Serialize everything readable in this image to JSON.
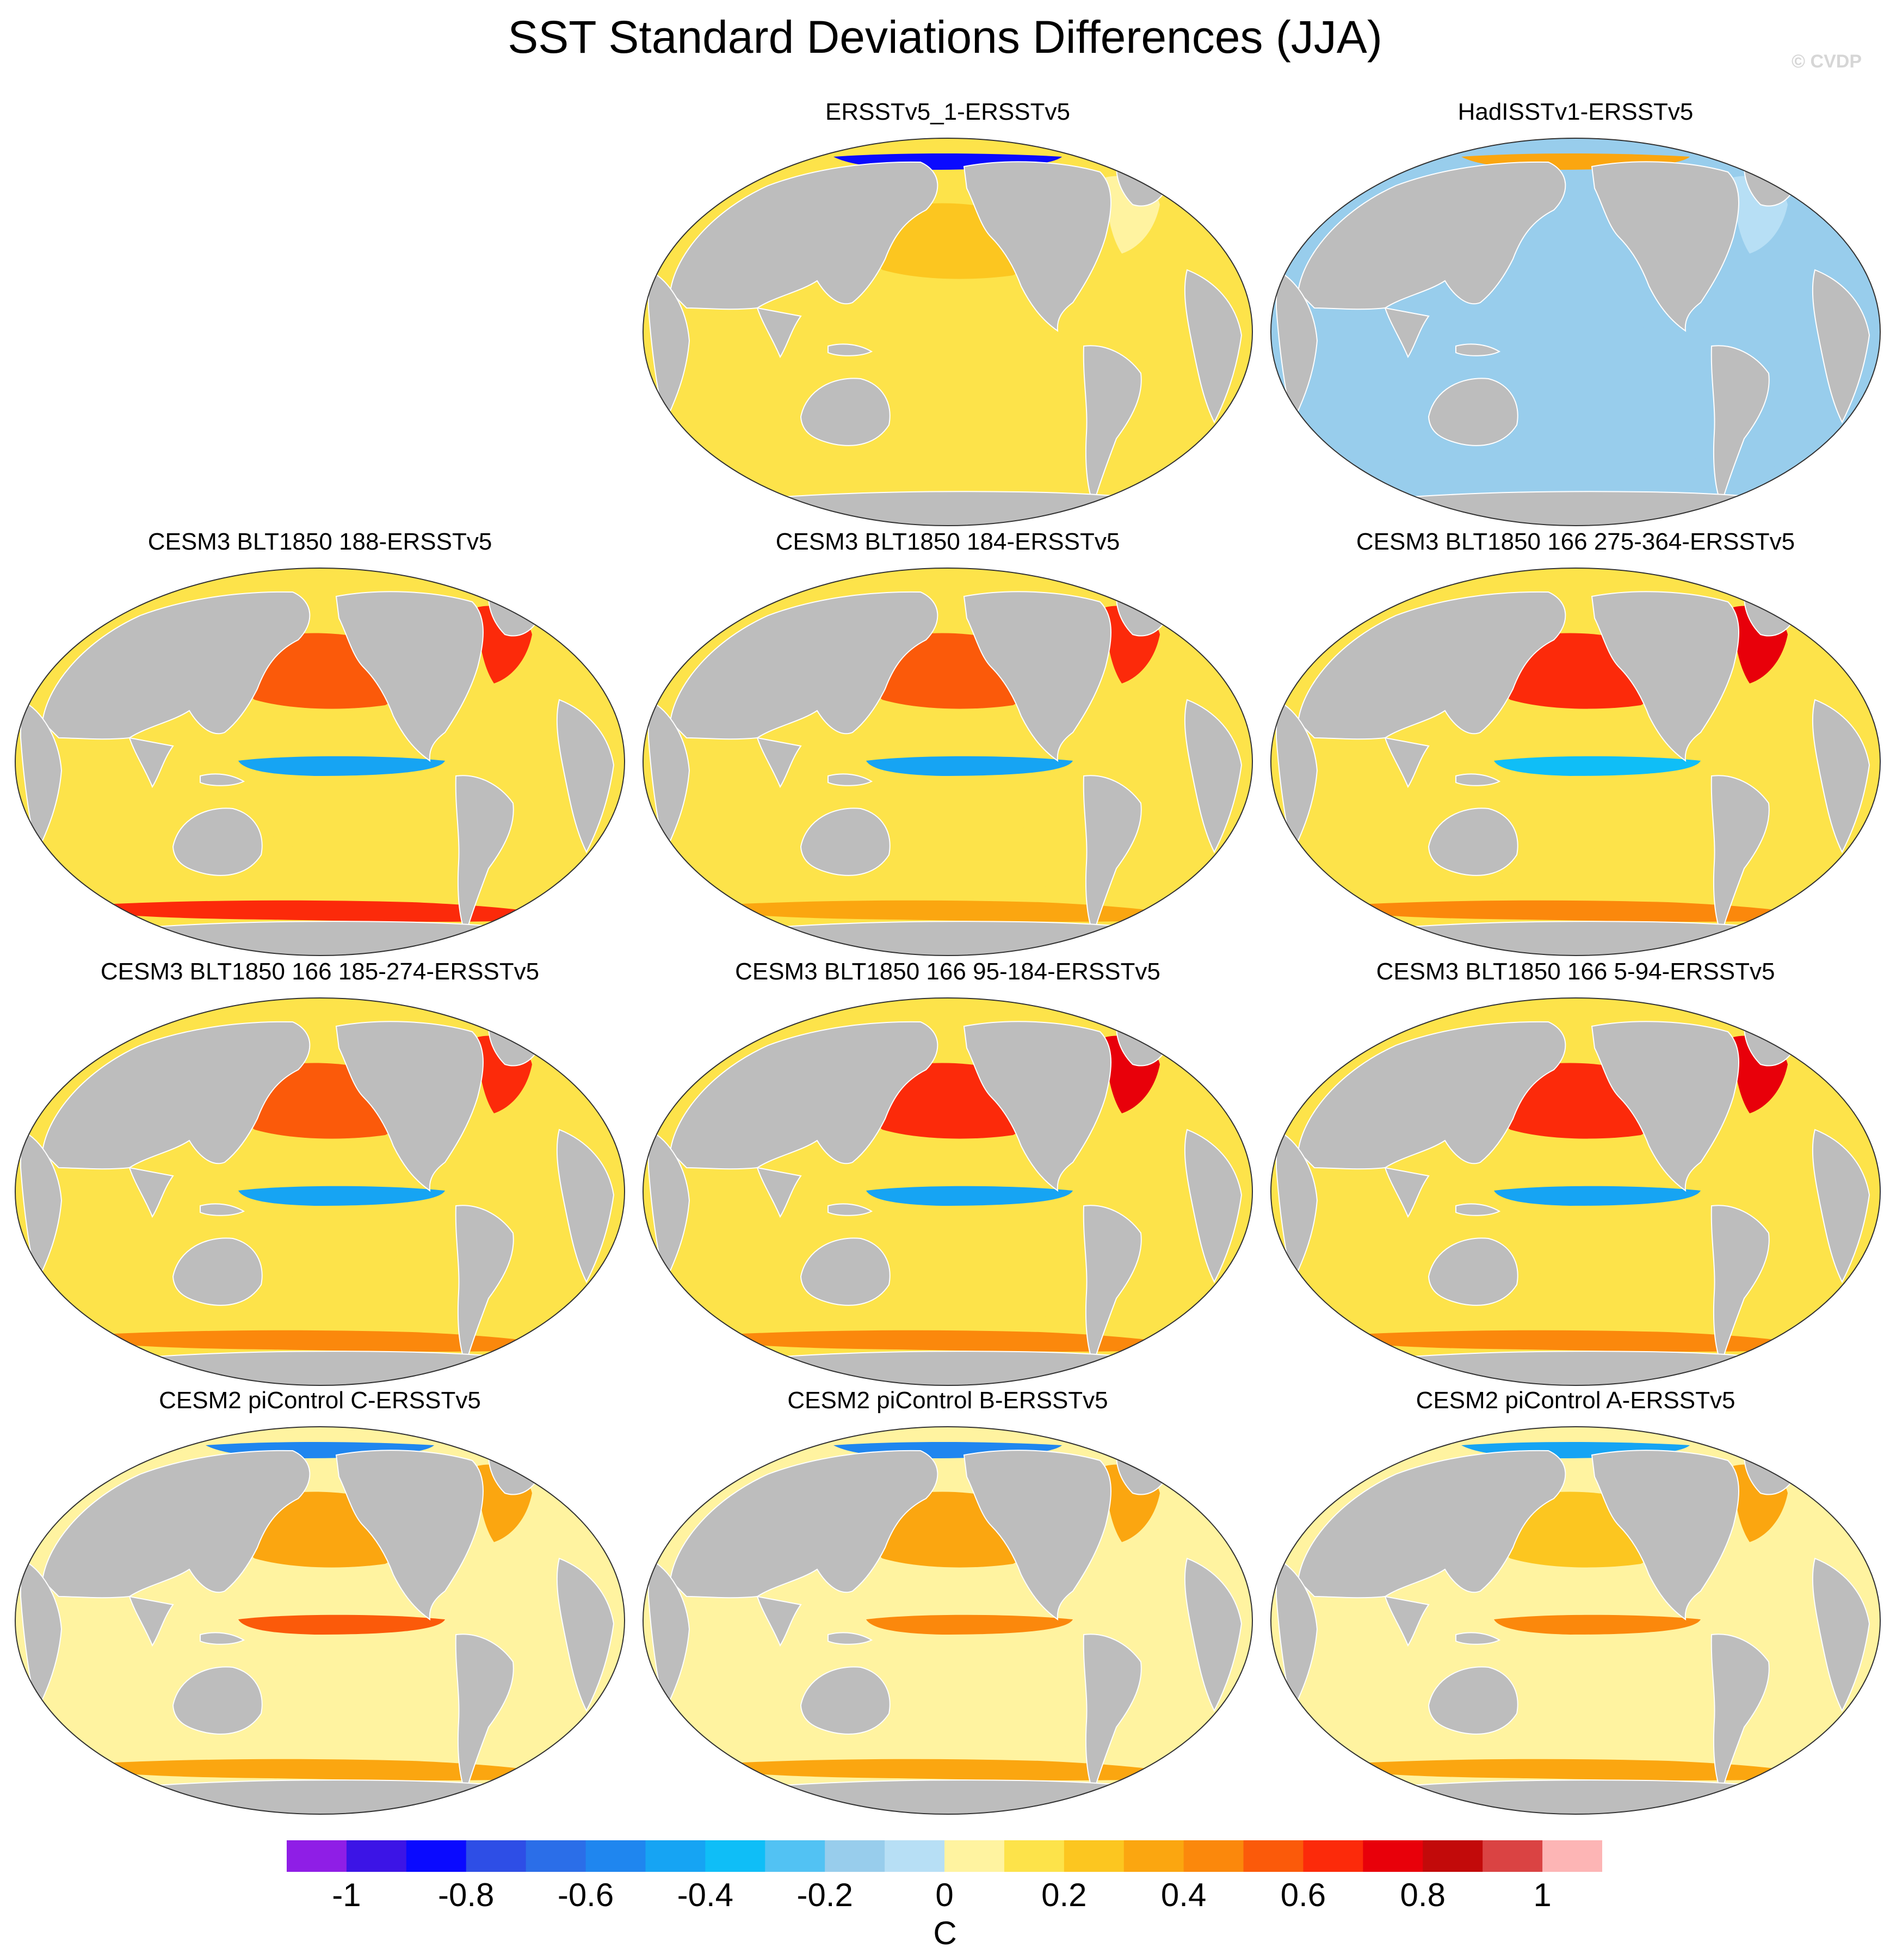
{
  "figure": {
    "title": "SST Standard Deviations Differences (JJA)",
    "credit": "© CVDP"
  },
  "chart_data": {
    "type": "heatmap",
    "title": "SST Standard Deviations Differences (JJA)",
    "projection": "Robinson (Pacific-centered)",
    "variable": "SST standard deviation difference (model/obs minus ERSSTv5)",
    "season": "JJA",
    "colorbar": {
      "label": "C",
      "levels": [
        -1.1,
        -1.0,
        -0.9,
        -0.8,
        -0.7,
        -0.6,
        -0.5,
        -0.4,
        -0.3,
        -0.2,
        -0.1,
        0,
        0.1,
        0.2,
        0.3,
        0.4,
        0.5,
        0.6,
        0.7,
        0.8,
        0.9,
        1.0,
        1.1
      ],
      "tick_values": [
        -1,
        -0.8,
        -0.6,
        -0.4,
        -0.2,
        0,
        0.2,
        0.4,
        0.6,
        0.8,
        1
      ],
      "tick_labels": [
        "-1",
        "-0.8",
        "-0.6",
        "-0.4",
        "-0.2",
        "0",
        "0.2",
        "0.4",
        "0.6",
        "0.8",
        "1"
      ],
      "colors": [
        "#8f1ee6",
        "#3c14e6",
        "#0a0aff",
        "#2e4ee6",
        "#2b6ee8",
        "#1f86ef",
        "#16a4f3",
        "#0fbef7",
        "#52c2f3",
        "#98cdec",
        "#b7dff5",
        "#fff3a0",
        "#fde34a",
        "#fcc620",
        "#fba610",
        "#fb880c",
        "#fb5a0a",
        "#fc2a0a",
        "#e8000a",
        "#c20a0a",
        "#da4343",
        "#fdb5b5"
      ]
    },
    "panels": [
      {
        "id": "ersstv5_1",
        "title": "ERSSTv5_1-ERSSTv5",
        "row": 1,
        "col": 2,
        "features": {
          "tropical_pacific": 0.15,
          "north_pacific": 0.2,
          "southern_ocean": 0.1,
          "north_atlantic": 0.05,
          "arctic_edge": -0.9,
          "general": 0.1
        }
      },
      {
        "id": "hadisst",
        "title": "HadISSTv1-ERSSTv5",
        "row": 1,
        "col": 3,
        "features": {
          "tropical_pacific": -0.15,
          "north_pacific": -0.15,
          "southern_ocean": -0.2,
          "north_atlantic": -0.1,
          "arctic_edge": 0.3,
          "general": -0.12
        }
      },
      {
        "id": "blt188",
        "title": "CESM3 BLT1850 188-ERSSTv5",
        "row": 2,
        "col": 1,
        "features": {
          "tropical_pacific": -0.5,
          "north_pacific": 0.5,
          "southern_ocean": 0.6,
          "north_atlantic": 0.6,
          "arctic_edge": 0.1,
          "general": 0.15
        }
      },
      {
        "id": "blt184",
        "title": "CESM3 BLT1850 184-ERSSTv5",
        "row": 2,
        "col": 2,
        "features": {
          "tropical_pacific": -0.5,
          "north_pacific": 0.55,
          "southern_ocean": 0.35,
          "north_atlantic": 0.65,
          "arctic_edge": 0.1,
          "general": 0.15
        }
      },
      {
        "id": "blt166_275",
        "title": "CESM3 BLT1850 166 275-364-ERSSTv5",
        "row": 2,
        "col": 3,
        "features": {
          "tropical_pacific": -0.35,
          "north_pacific": 0.6,
          "southern_ocean": 0.4,
          "north_atlantic": 0.7,
          "arctic_edge": 0.1,
          "general": 0.15
        }
      },
      {
        "id": "blt166_185",
        "title": "CESM3 BLT1850 166 185-274-ERSSTv5",
        "row": 3,
        "col": 1,
        "features": {
          "tropical_pacific": -0.5,
          "north_pacific": 0.55,
          "southern_ocean": 0.45,
          "north_atlantic": 0.65,
          "arctic_edge": 0.1,
          "general": 0.12
        }
      },
      {
        "id": "blt166_95",
        "title": "CESM3 BLT1850 166 95-184-ERSSTv5",
        "row": 3,
        "col": 2,
        "features": {
          "tropical_pacific": -0.5,
          "north_pacific": 0.6,
          "southern_ocean": 0.45,
          "north_atlantic": 0.75,
          "arctic_edge": 0.1,
          "general": 0.12
        }
      },
      {
        "id": "blt166_5",
        "title": "CESM3 BLT1850 166 5-94-ERSSTv5",
        "row": 3,
        "col": 3,
        "features": {
          "tropical_pacific": -0.45,
          "north_pacific": 0.65,
          "southern_ocean": 0.45,
          "north_atlantic": 0.75,
          "arctic_edge": 0.1,
          "general": 0.12
        }
      },
      {
        "id": "picontrol_c",
        "title": "CESM2 piControl C-ERSSTv5",
        "row": 4,
        "col": 1,
        "features": {
          "tropical_pacific": 0.5,
          "north_pacific": 0.3,
          "southern_ocean": 0.3,
          "north_atlantic": 0.3,
          "arctic_edge": -0.6,
          "general": 0.0
        }
      },
      {
        "id": "picontrol_b",
        "title": "CESM2 piControl B-ERSSTv5",
        "row": 4,
        "col": 2,
        "features": {
          "tropical_pacific": 0.45,
          "north_pacific": 0.3,
          "southern_ocean": 0.3,
          "north_atlantic": 0.3,
          "arctic_edge": -0.6,
          "general": 0.0
        }
      },
      {
        "id": "picontrol_a",
        "title": "CESM2 piControl A-ERSSTv5",
        "row": 4,
        "col": 3,
        "features": {
          "tropical_pacific": 0.45,
          "north_pacific": 0.25,
          "southern_ocean": 0.3,
          "north_atlantic": 0.3,
          "arctic_edge": -0.5,
          "general": 0.0
        }
      }
    ]
  }
}
